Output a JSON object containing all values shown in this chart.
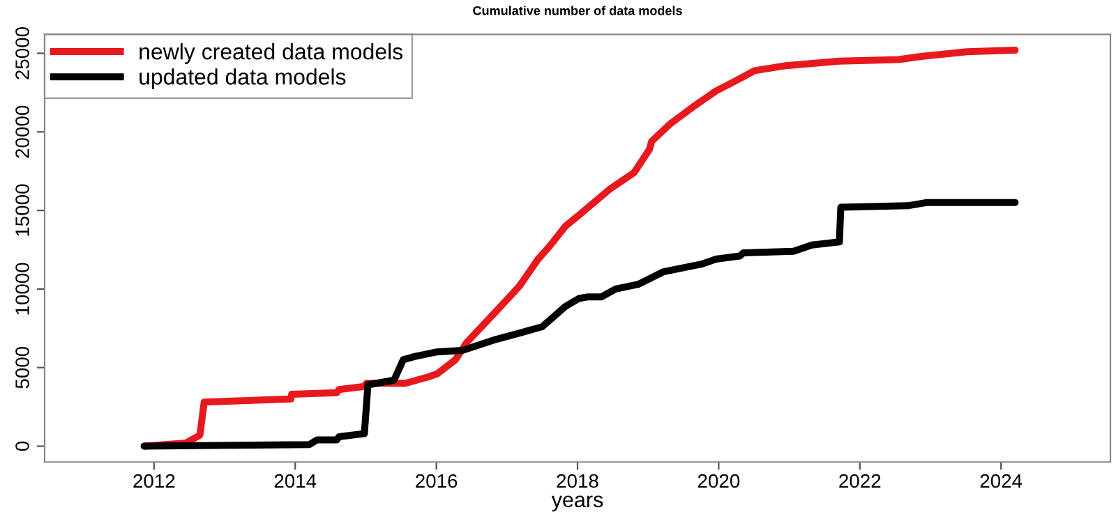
{
  "chart_data": {
    "type": "line",
    "title": "Cumulative number of data models",
    "xlabel": "years",
    "xlim": [
      2010.45,
      2025.55
    ],
    "xticks": [
      2012,
      2014,
      2016,
      2018,
      2020,
      2022,
      2024
    ],
    "ylim": [
      -1008,
      26208
    ],
    "yticks": [
      0,
      5000,
      10000,
      15000,
      20000,
      25000
    ],
    "grid": false,
    "legend": "top left",
    "marker": "none",
    "line_style": "solid",
    "series": [
      {
        "name": "newly created data models",
        "color": "#e8191e",
        "x": [
          2011.86,
          2012.45,
          2012.65,
          2012.71,
          2013.94,
          2013.95,
          2014.59,
          2014.62,
          2014.98,
          2015.01,
          2015.56,
          2015.88,
          2016.01,
          2016.27,
          2016.43,
          2016.85,
          2017.18,
          2017.44,
          2017.6,
          2017.83,
          2018.02,
          2018.47,
          2018.8,
          2019.02,
          2019.05,
          2019.31,
          2019.64,
          2019.96,
          2020.22,
          2020.51,
          2020.93,
          2021.71,
          2022.55,
          2022.87,
          2023.52,
          2024.2
        ],
        "values": [
          0,
          200,
          700,
          2800,
          3000,
          3300,
          3400,
          3600,
          3800,
          4000,
          4000,
          4400,
          4600,
          5500,
          6600,
          8600,
          10200,
          11900,
          12700,
          14000,
          14700,
          16400,
          17400,
          18900,
          19400,
          20500,
          21600,
          22600,
          23200,
          23900,
          24200,
          24500,
          24600,
          24800,
          25100,
          25200
        ]
      },
      {
        "name": "updated data models",
        "color": "#000000",
        "x": [
          2011.86,
          2014.2,
          2014.31,
          2014.59,
          2014.62,
          2014.98,
          2015.03,
          2015.4,
          2015.53,
          2015.69,
          2016.01,
          2016.37,
          2016.85,
          2017.18,
          2017.5,
          2017.83,
          2018.02,
          2018.15,
          2018.34,
          2018.54,
          2018.86,
          2019.22,
          2019.77,
          2019.96,
          2020.3,
          2020.35,
          2021.06,
          2021.32,
          2021.71,
          2021.73,
          2022.68,
          2022.94,
          2024.2
        ],
        "values": [
          0,
          100,
          400,
          400,
          600,
          800,
          3900,
          4200,
          5500,
          5700,
          6000,
          6100,
          6800,
          7200,
          7600,
          8900,
          9400,
          9500,
          9500,
          10000,
          10300,
          11100,
          11600,
          11900,
          12100,
          12300,
          12400,
          12800,
          13000,
          15200,
          15300,
          15500,
          15500
        ]
      }
    ]
  }
}
